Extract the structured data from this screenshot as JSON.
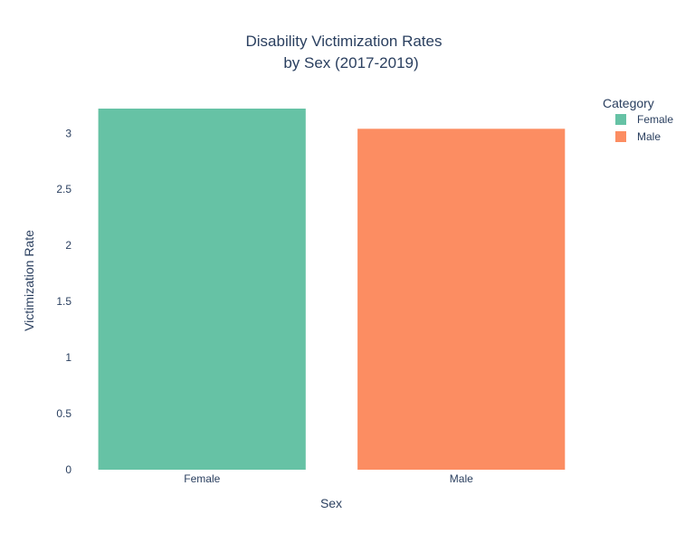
{
  "chart_data": {
    "type": "bar",
    "title_lines": [
      "Disability Victimization Rates",
      "by Sex (2017-2019)"
    ],
    "xlabel": "Sex",
    "ylabel": "Victimization Rate",
    "categories": [
      "Female",
      "Male"
    ],
    "values": [
      3.22,
      3.04
    ],
    "colors": [
      "#66c2a5",
      "#fc8d62"
    ],
    "ylim": [
      0,
      3.22
    ],
    "yticks": [
      0,
      0.5,
      1,
      1.5,
      2,
      2.5,
      3
    ],
    "ytick_labels": [
      "0",
      "0.5",
      "1",
      "1.5",
      "2",
      "2.5",
      "3"
    ],
    "grid": false,
    "legend": {
      "title": "Category",
      "position": "top-right",
      "entries": [
        {
          "label": "Female",
          "color": "#66c2a5"
        },
        {
          "label": "Male",
          "color": "#fc8d62"
        }
      ]
    }
  }
}
